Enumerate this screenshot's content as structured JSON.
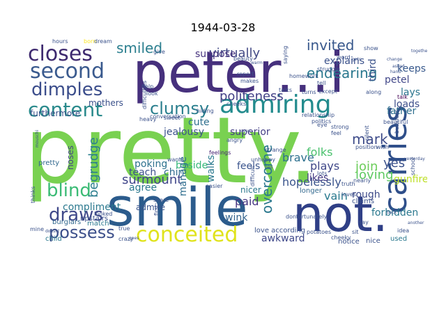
{
  "title": "1944-03-28",
  "words": [
    {
      "text": "pretty.",
      "color": "#79d151"
    },
    {
      "text": "peter...i",
      "color": "#46307d"
    },
    {
      "text": "smile",
      "color": "#2b5b8c"
    },
    {
      "text": "not.",
      "color": "#2f3f86"
    },
    {
      "text": "conceited",
      "color": "#e0e31c"
    },
    {
      "text": "carries",
      "color": "#2f4f8a"
    },
    {
      "text": "admiring",
      "color": "#228b8d"
    },
    {
      "text": "closes",
      "color": "#3e2a6f"
    },
    {
      "text": "second",
      "color": "#3a5a8e"
    },
    {
      "text": "dimples",
      "color": "#3b4d8b"
    },
    {
      "text": "content",
      "color": "#2a8a8c"
    },
    {
      "text": "clumsy",
      "color": "#2b7f8e"
    },
    {
      "text": "smiled",
      "color": "#2a7e8e"
    },
    {
      "text": "virtually",
      "color": "#444b86"
    },
    {
      "text": "invited",
      "color": "#38588c"
    },
    {
      "text": "endearing",
      "color": "#2a788e"
    },
    {
      "text": "politeness",
      "color": "#424086"
    },
    {
      "text": "blind",
      "color": "#3bbb75"
    },
    {
      "text": "begrudge",
      "color": "#2b7e8e"
    },
    {
      "text": "draws",
      "color": "#3f4889"
    },
    {
      "text": "possess",
      "color": "#3c4f8a"
    },
    {
      "text": "surmount",
      "color": "#40468a"
    },
    {
      "text": "overcome",
      "color": "#2a788e"
    },
    {
      "text": "loving",
      "color": "#5ec962"
    },
    {
      "text": "mark",
      "color": "#3e4c8a"
    },
    {
      "text": "yes",
      "color": "#3b518b"
    },
    {
      "text": "join",
      "color": "#6ccd5a"
    },
    {
      "text": "folks",
      "color": "#4ac16d"
    },
    {
      "text": "brave",
      "color": "#2d708e"
    },
    {
      "text": "plays",
      "color": "#3f4788"
    },
    {
      "text": "hopelessly",
      "color": "#3a548c"
    },
    {
      "text": "paid",
      "color": "#453581"
    },
    {
      "text": "wink",
      "color": "#33638d"
    },
    {
      "text": "awkward",
      "color": "#3f4889"
    },
    {
      "text": "rough",
      "color": "#3e4a89"
    },
    {
      "text": "vain",
      "color": "#29798e"
    },
    {
      "text": "forbidden",
      "color": "#2a788e"
    },
    {
      "text": "gunfire",
      "color": "#bddf26"
    },
    {
      "text": "petel",
      "color": "#404688"
    },
    {
      "text": "lays",
      "color": "#2b758e"
    },
    {
      "text": "loads",
      "color": "#3d4e8a"
    },
    {
      "text": "father",
      "color": "#2e6e8e"
    },
    {
      "text": "keeps",
      "color": "#38598c"
    },
    {
      "text": "explains",
      "color": "#3b528b"
    },
    {
      "text": "third",
      "color": "#3b528b"
    },
    {
      "text": "superior",
      "color": "#433e85"
    },
    {
      "text": "feels",
      "color": "#3a548c"
    },
    {
      "text": "walks",
      "color": "#2a788e"
    },
    {
      "text": "chin",
      "color": "#2f6b8e"
    },
    {
      "text": "agree",
      "color": "#2a788e"
    },
    {
      "text": "teach",
      "color": "#3b518b"
    },
    {
      "text": "beside",
      "color": "#35b779"
    },
    {
      "text": "poking",
      "color": "#2d718e"
    },
    {
      "text": "jealousy",
      "color": "#3b528b"
    },
    {
      "text": "cute",
      "color": "#2e6f8e"
    },
    {
      "text": "suppose",
      "color": "#46327e"
    },
    {
      "text": "mothers",
      "color": "#3b518b"
    },
    {
      "text": "furthermore",
      "color": "#3b528b"
    },
    {
      "text": "compliment",
      "color": "#2a788e"
    },
    {
      "text": "noses",
      "color": "#424086"
    },
    {
      "text": "manage",
      "color": "#2e6e8e"
    },
    {
      "text": "likes",
      "color": "#443983"
    },
    {
      "text": "admire",
      "color": "#3a548c"
    },
    {
      "text": "feelings",
      "color": "#482374"
    },
    {
      "text": "upstairs",
      "color": "#3b528b"
    },
    {
      "text": "burglars",
      "color": "#31688e"
    },
    {
      "text": "match",
      "color": "#2a788e"
    },
    {
      "text": "pretty",
      "color": "#31688e"
    },
    {
      "text": "nicer",
      "color": "#2a788e"
    },
    {
      "text": "longer",
      "color": "#31688e"
    },
    {
      "text": "claims",
      "color": "#3b528b"
    },
    {
      "text": "love according",
      "color": "#3b528b"
    },
    {
      "text": "notice",
      "color": "#3b528b"
    },
    {
      "text": "nice",
      "color": "#3b528b"
    },
    {
      "text": "used",
      "color": "#2a788e"
    },
    {
      "text": "child",
      "color": "#2a788e"
    },
    {
      "text": "crazy",
      "color": "#3b528b"
    },
    {
      "text": "true",
      "color": "#3b528b"
    },
    {
      "text": "share",
      "color": "#3b528b"
    },
    {
      "text": "looked",
      "color": "#3b528b"
    },
    {
      "text": "talk",
      "color": "#440154"
    },
    {
      "text": "strange",
      "color": "#3b528b"
    },
    {
      "text": "unhappy",
      "color": "#3b528b"
    },
    {
      "text": "difficult",
      "color": "#3b528b"
    },
    {
      "text": "loves",
      "color": "#3b528b"
    },
    {
      "text": "fortunately",
      "color": "#3b528b"
    },
    {
      "text": "idea",
      "color": "#3b528b"
    },
    {
      "text": "beautiful",
      "color": "#3b528b"
    },
    {
      "text": "lots",
      "color": "#3b528b"
    },
    {
      "text": "hours",
      "color": "#3b528b"
    },
    {
      "text": "born",
      "color": "#fde725"
    },
    {
      "text": "dream",
      "color": "#3b528b"
    },
    {
      "text": "give",
      "color": "#3b528b"
    },
    {
      "text": "report",
      "color": "#3b528b"
    },
    {
      "text": "makes",
      "color": "#3b528b"
    },
    {
      "text": "turns",
      "color": "#3b528b"
    },
    {
      "text": "except",
      "color": "#3b528b"
    },
    {
      "text": "relationship",
      "color": "#3b528b"
    },
    {
      "text": "politics",
      "color": "#3b528b"
    },
    {
      "text": "strong",
      "color": "#3b528b"
    },
    {
      "text": "feel",
      "color": "#3b528b"
    },
    {
      "text": "truth",
      "color": "#3b528b"
    },
    {
      "text": "eye",
      "color": "#3b528b"
    },
    {
      "text": "sweet",
      "color": "#3b528b"
    },
    {
      "text": "hiding",
      "color": "#3b528b"
    },
    {
      "text": "wants",
      "color": "#3b528b"
    },
    {
      "text": "help",
      "color": "#3b528b"
    },
    {
      "text": "look",
      "color": "#3b528b"
    },
    {
      "text": "heavy",
      "color": "#3b528b"
    },
    {
      "text": "conversation",
      "color": "#3b528b"
    },
    {
      "text": "angry",
      "color": "#3b528b"
    },
    {
      "text": "cheeks",
      "color": "#3b528b"
    },
    {
      "text": "easier",
      "color": "#3b528b"
    },
    {
      "text": "first",
      "color": "#3b528b"
    },
    {
      "text": "difficulties",
      "color": "#3b528b"
    },
    {
      "text": "mine",
      "color": "#3b528b"
    },
    {
      "text": "thinks",
      "color": "#3b528b"
    },
    {
      "text": "beauty",
      "color": "#3b528b"
    },
    {
      "text": "talks",
      "color": "#3b528b"
    },
    {
      "text": "homework",
      "color": "#3b528b"
    },
    {
      "text": "tell",
      "color": "#3b528b"
    },
    {
      "text": "struggle",
      "color": "#3b528b"
    },
    {
      "text": "saying",
      "color": "#3b528b"
    },
    {
      "text": "word",
      "color": "#3b528b"
    },
    {
      "text": "show",
      "color": "#3b528b"
    },
    {
      "text": "along",
      "color": "#3b528b"
    },
    {
      "text": "wish",
      "color": "#3b528b"
    },
    {
      "text": "position",
      "color": "#3b528b"
    },
    {
      "text": "silent",
      "color": "#3b528b"
    },
    {
      "text": "nearly",
      "color": "#3b528b"
    },
    {
      "text": "cheeky",
      "color": "#3b528b"
    },
    {
      "text": "school",
      "color": "#3b528b"
    },
    {
      "text": "business",
      "color": "#3b528b"
    },
    {
      "text": "hand",
      "color": "#3b528b"
    },
    {
      "text": "together",
      "color": "#3b528b"
    },
    {
      "text": "change",
      "color": "#3b528b"
    },
    {
      "text": "asked",
      "color": "#3b528b"
    },
    {
      "text": "mouschi",
      "color": "#3b528b"
    },
    {
      "text": "doesnt",
      "color": "#3b528b"
    },
    {
      "text": "say",
      "color": "#3b528b"
    },
    {
      "text": "sit",
      "color": "#3b528b"
    },
    {
      "text": "potatoes",
      "color": "#3b528b"
    },
    {
      "text": "dont",
      "color": "#3b528b"
    },
    {
      "text": "goes",
      "color": "#3b528b"
    },
    {
      "text": "another",
      "color": "#3b528b"
    },
    {
      "text": "back",
      "color": "#3b528b"
    },
    {
      "text": "yesterday",
      "color": "#3b528b"
    },
    {
      "text": "warm",
      "color": "#3b528b"
    },
    {
      "text": "bad",
      "color": "#3b528b"
    },
    {
      "text": "even",
      "color": "#3b528b"
    },
    {
      "text": "gets",
      "color": "#3b528b"
    }
  ]
}
